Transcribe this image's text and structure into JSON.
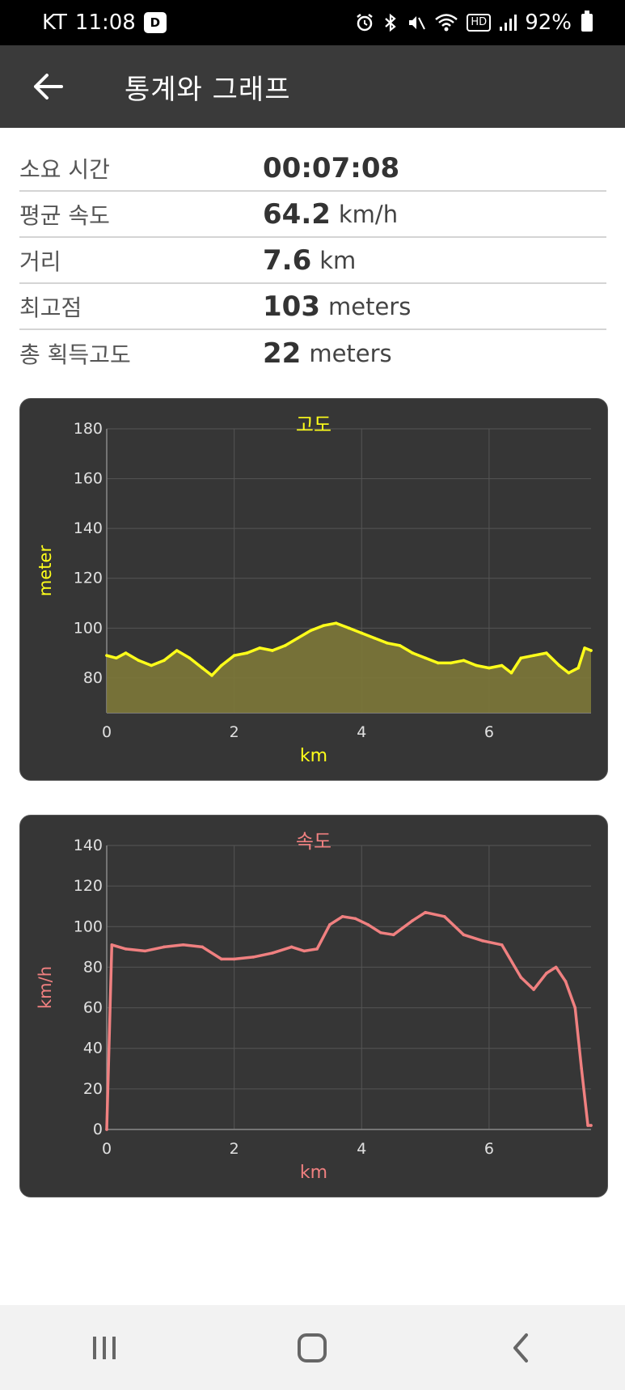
{
  "status_bar": {
    "carrier": "KT",
    "time": "11:08",
    "app_badge": "D",
    "hd_label": "HD",
    "battery": "92%",
    "icons": [
      "alarm-icon",
      "bluetooth-icon",
      "mute-icon",
      "wifi-icon",
      "hd-voice-icon",
      "signal-icon",
      "battery-icon"
    ]
  },
  "app_bar": {
    "title": "통계와 그래프",
    "back_icon": "back-arrow-icon"
  },
  "stats": [
    {
      "label": "소요 시간",
      "value": "00:07:08",
      "unit": ""
    },
    {
      "label": "평균 속도",
      "value": "64.2",
      "unit": "km/h"
    },
    {
      "label": "거리",
      "value": "7.6",
      "unit": "km"
    },
    {
      "label": "최고점",
      "value": "103",
      "unit": "meters"
    },
    {
      "label": "총 획득고도",
      "value": "22",
      "unit": "meters"
    }
  ],
  "colors": {
    "card_bg": "#363636",
    "altitude_line": "#ffff1a",
    "altitude_fill": "#7d7839",
    "speed_line": "#f08080",
    "grid": "#555555",
    "tick_text": "#e0e0e0"
  },
  "chart_data": [
    {
      "type": "area",
      "title": "고도",
      "xlabel": "km",
      "ylabel": "meter",
      "xlim": [
        0,
        7.6
      ],
      "ylim": [
        66,
        180
      ],
      "xticks": [
        "0",
        "2",
        "4",
        "6"
      ],
      "xtick_values": [
        0,
        2,
        4,
        6
      ],
      "yticks": [
        "80",
        "100",
        "120",
        "140",
        "160",
        "180"
      ],
      "ytick_values": [
        80,
        100,
        120,
        140,
        160,
        180
      ],
      "grid": true,
      "x": [
        0,
        0.15,
        0.3,
        0.5,
        0.7,
        0.9,
        1.1,
        1.3,
        1.5,
        1.65,
        1.8,
        2.0,
        2.2,
        2.4,
        2.6,
        2.8,
        3.0,
        3.2,
        3.4,
        3.6,
        3.8,
        4.0,
        4.2,
        4.4,
        4.6,
        4.8,
        5.0,
        5.2,
        5.4,
        5.6,
        5.8,
        6.0,
        6.2,
        6.35,
        6.5,
        6.7,
        6.9,
        7.1,
        7.25,
        7.4,
        7.5,
        7.6
      ],
      "values": [
        89,
        88,
        90,
        87,
        85,
        87,
        91,
        88,
        84,
        81,
        85,
        89,
        90,
        92,
        91,
        93,
        96,
        99,
        101,
        102,
        100,
        98,
        96,
        94,
        93,
        90,
        88,
        86,
        86,
        87,
        85,
        84,
        85,
        82,
        88,
        89,
        90,
        85,
        82,
        84,
        92,
        91
      ]
    },
    {
      "type": "line",
      "title": "속도",
      "xlabel": "km",
      "ylabel": "km/h",
      "xlim": [
        0,
        7.6
      ],
      "ylim": [
        0,
        140
      ],
      "xticks": [
        "0",
        "2",
        "4",
        "6"
      ],
      "xtick_values": [
        0,
        2,
        4,
        6
      ],
      "yticks": [
        "0",
        "20",
        "40",
        "60",
        "80",
        "100",
        "120",
        "140"
      ],
      "ytick_values": [
        0,
        20,
        40,
        60,
        80,
        100,
        120,
        140
      ],
      "grid": true,
      "x": [
        0,
        0.08,
        0.3,
        0.6,
        0.9,
        1.2,
        1.5,
        1.8,
        2.0,
        2.3,
        2.6,
        2.9,
        3.1,
        3.3,
        3.5,
        3.7,
        3.9,
        4.1,
        4.3,
        4.5,
        4.8,
        5.0,
        5.3,
        5.6,
        5.9,
        6.2,
        6.5,
        6.7,
        6.9,
        7.05,
        7.2,
        7.35,
        7.45,
        7.55,
        7.6
      ],
      "values": [
        0,
        91,
        89,
        88,
        90,
        91,
        90,
        84,
        84,
        85,
        87,
        90,
        88,
        89,
        101,
        105,
        104,
        101,
        97,
        96,
        103,
        107,
        105,
        96,
        93,
        91,
        75,
        69,
        77,
        80,
        73,
        60,
        30,
        2,
        2
      ]
    }
  ],
  "nav_bar": {
    "items": [
      "recents-icon",
      "home-icon",
      "back-icon"
    ]
  }
}
